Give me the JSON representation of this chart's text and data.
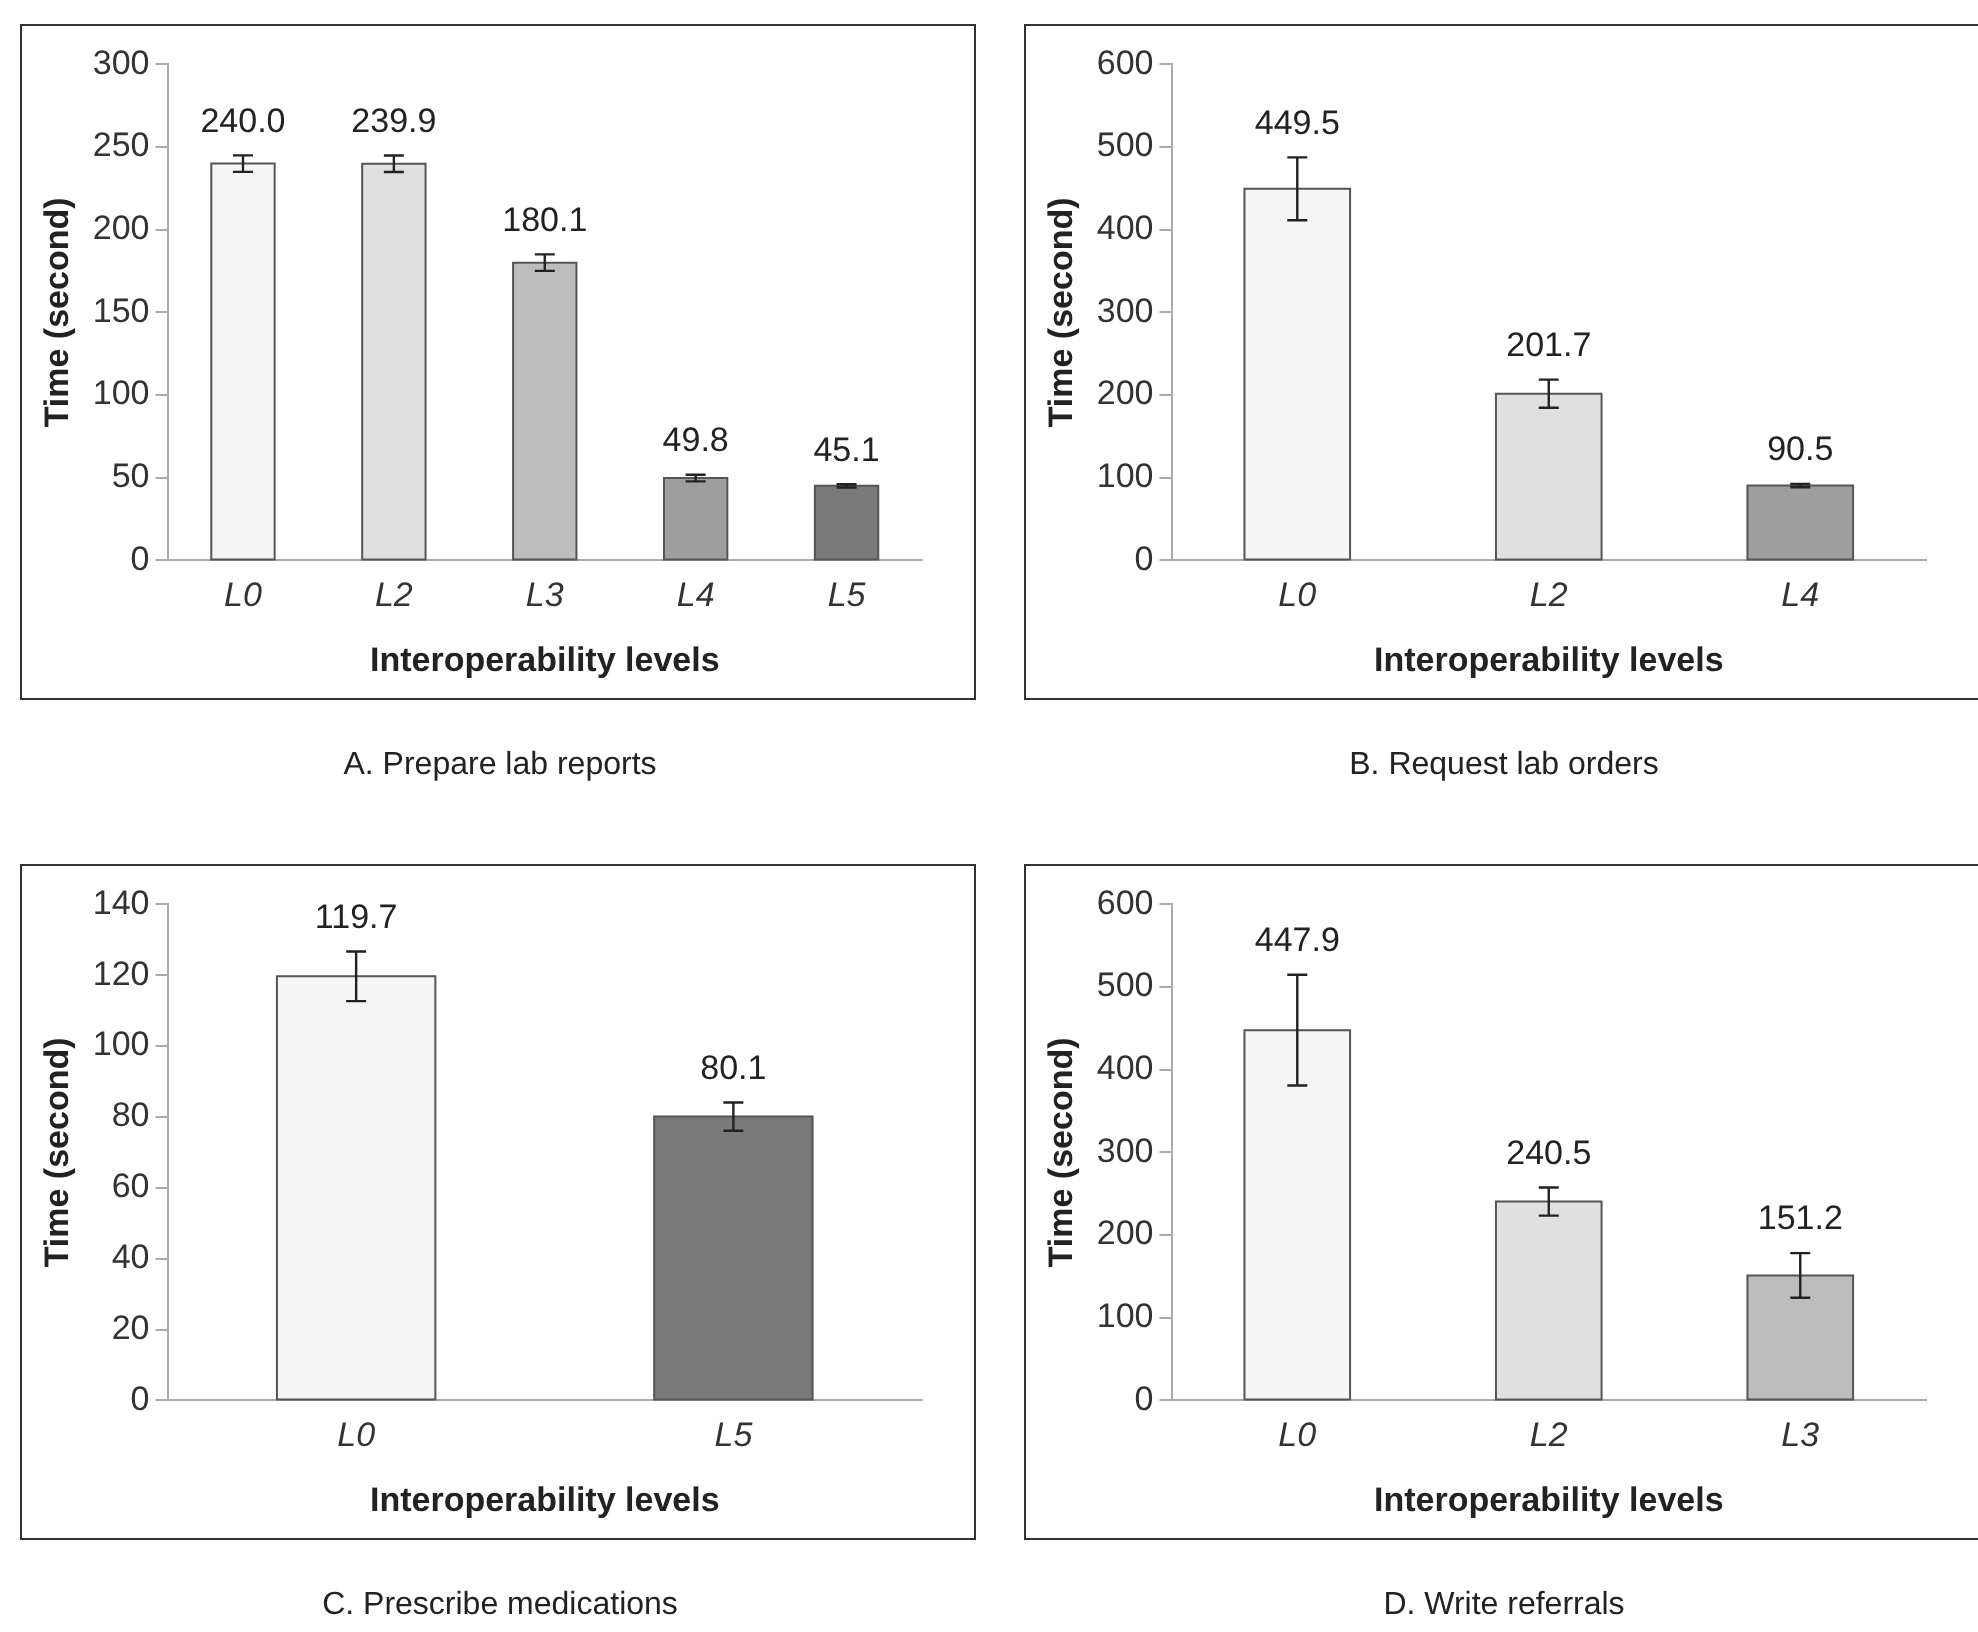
{
  "chart_data": [
    {
      "type": "bar",
      "title": "A. Prepare lab reports",
      "xlabel": "Interoperability levels",
      "ylabel": "Time (second)",
      "categories": [
        "L0",
        "L2",
        "L3",
        "L4",
        "L5"
      ],
      "values": [
        240.0,
        239.9,
        180.1,
        49.8,
        45.1
      ],
      "value_labels": [
        "240.0",
        "239.9",
        "180.1",
        "49.8",
        "45.1"
      ],
      "errors": [
        5,
        5,
        5,
        2,
        1
      ],
      "colors": [
        "#f5f5f5",
        "#e0e0e0",
        "#bdbdbd",
        "#9e9e9e",
        "#7a7a7a"
      ],
      "ylim": [
        0,
        300
      ],
      "yticks": [
        0,
        50,
        100,
        150,
        200,
        250,
        300
      ],
      "grid": false,
      "legend": false
    },
    {
      "type": "bar",
      "title": "B. Request lab orders",
      "xlabel": "Interoperability levels",
      "ylabel": "Time (second)",
      "categories": [
        "L0",
        "L2",
        "L4"
      ],
      "values": [
        449.5,
        201.7,
        90.5
      ],
      "value_labels": [
        "449.5",
        "201.7",
        "90.5"
      ],
      "errors": [
        38,
        17,
        2
      ],
      "colors": [
        "#f5f5f5",
        "#e0e0e0",
        "#9e9e9e"
      ],
      "ylim": [
        0,
        600
      ],
      "yticks": [
        0,
        100,
        200,
        300,
        400,
        500,
        600
      ],
      "grid": false,
      "legend": false
    },
    {
      "type": "bar",
      "title": "C. Prescribe medications",
      "xlabel": "Interoperability levels",
      "ylabel": "Time (second)",
      "categories": [
        "L0",
        "L5"
      ],
      "values": [
        119.7,
        80.1
      ],
      "value_labels": [
        "119.7",
        "80.1"
      ],
      "errors": [
        7,
        4
      ],
      "colors": [
        "#f5f5f5",
        "#7a7a7a"
      ],
      "ylim": [
        0,
        140
      ],
      "yticks": [
        0,
        20,
        40,
        60,
        80,
        100,
        120,
        140
      ],
      "grid": false,
      "legend": false
    },
    {
      "type": "bar",
      "title": "D. Write referrals",
      "xlabel": "Interoperability levels",
      "ylabel": "Time (second)",
      "categories": [
        "L0",
        "L2",
        "L3"
      ],
      "values": [
        447.9,
        240.5,
        151.2
      ],
      "value_labels": [
        "447.9",
        "240.5",
        "151.2"
      ],
      "errors": [
        67,
        17,
        27
      ],
      "colors": [
        "#f5f5f5",
        "#e0e0e0",
        "#bdbdbd"
      ],
      "ylim": [
        0,
        600
      ],
      "yticks": [
        0,
        100,
        200,
        300,
        400,
        500,
        600
      ],
      "grid": false,
      "legend": false
    }
  ]
}
